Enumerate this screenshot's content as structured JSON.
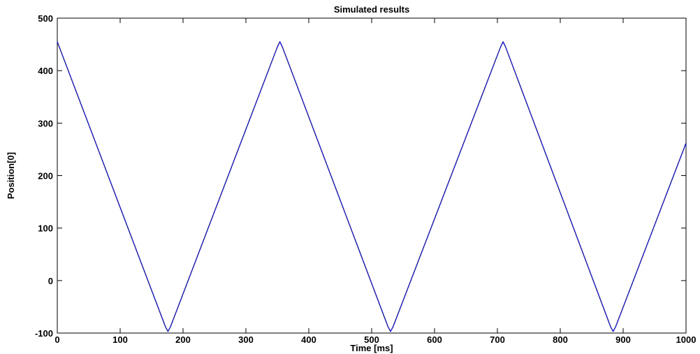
{
  "chart_data": {
    "type": "line",
    "title": "Simulated results",
    "xlabel": "Time [ms]",
    "ylabel": "Position[0]",
    "xlim": [
      0,
      1000
    ],
    "ylim": [
      -100,
      500
    ],
    "xticks": [
      0,
      100,
      200,
      300,
      400,
      500,
      600,
      700,
      800,
      900,
      1000
    ],
    "yticks": [
      -100,
      0,
      100,
      200,
      300,
      400,
      500
    ],
    "grid": false,
    "legend": "none",
    "series": [
      {
        "color": "#0000ff",
        "x": [
          0,
          172,
          176,
          180,
          350,
          354,
          358,
          526,
          530,
          534,
          705,
          709,
          713,
          880,
          884,
          888,
          1000
        ],
        "y": [
          455,
          -88,
          -97,
          -88,
          445,
          455,
          445,
          -88,
          -97,
          -88,
          445,
          455,
          445,
          -88,
          -97,
          -88,
          262
        ]
      }
    ]
  }
}
